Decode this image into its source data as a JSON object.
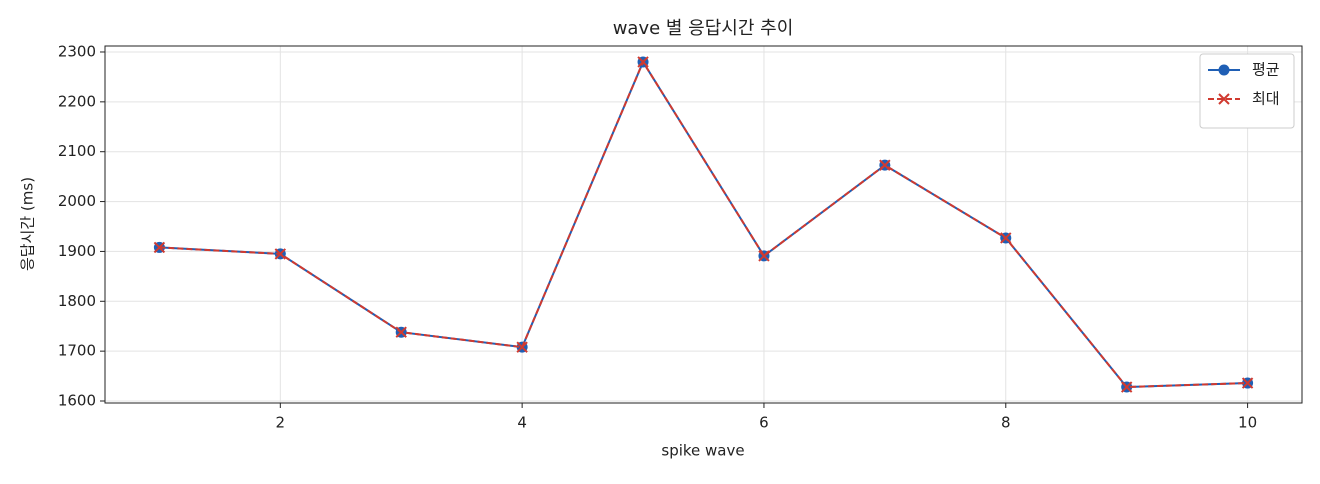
{
  "chart_data": {
    "type": "line",
    "title": "wave 별 응답시간 추이",
    "x_label": "spike wave",
    "y_label": "응답시간 (ms)",
    "x": [
      1,
      2,
      3,
      4,
      5,
      6,
      7,
      8,
      9,
      10
    ],
    "series": [
      {
        "name": "평균",
        "color": "#1f5fb5",
        "marker": "circle",
        "linestyle": "solid",
        "values": [
          1908,
          1895,
          1738,
          1708,
          2280,
          1891,
          2073,
          1927,
          1628,
          1636
        ]
      },
      {
        "name": "최대",
        "color": "#d03a30",
        "marker": "x",
        "linestyle": "dashed",
        "values": [
          1908,
          1895,
          1738,
          1708,
          2280,
          1891,
          2073,
          1927,
          1628,
          1636
        ]
      }
    ],
    "xlim": [
      0.55,
      10.45
    ],
    "xticks": [
      2,
      4,
      6,
      8,
      10
    ],
    "ylim": [
      1596,
      2312
    ],
    "yticks": [
      1600,
      1700,
      1800,
      1900,
      2000,
      2100,
      2200,
      2300
    ],
    "grid": true,
    "legend": "upper right"
  }
}
